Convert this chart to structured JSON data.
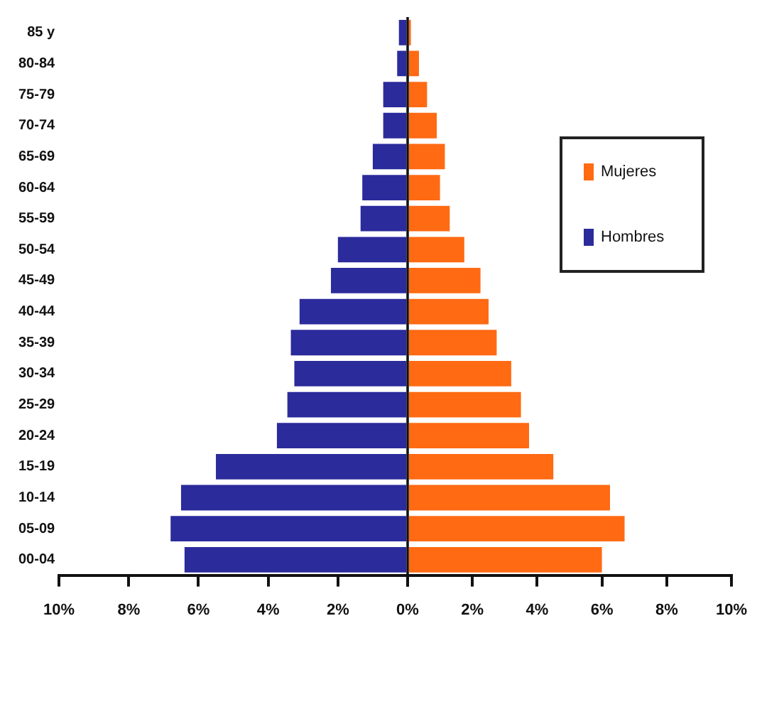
{
  "chart_data": [
    {
      "type": "bar",
      "orientation": "horizontal",
      "categories": [
        "85 y",
        "80-84",
        "75-79",
        "70-74",
        "65-69",
        "60-64",
        "55-59",
        "50-54",
        "45-49",
        "40-44",
        "35-39",
        "30-34",
        "25-29",
        "20-24",
        "15-19",
        "10-14",
        "05-09",
        "00-04"
      ],
      "series": [
        {
          "name": "Hombres",
          "color": "#2b2b9c",
          "values": [
            0.25,
            0.3,
            0.7,
            0.7,
            1.0,
            1.3,
            1.35,
            2.0,
            2.2,
            3.1,
            3.35,
            3.25,
            3.45,
            3.75,
            5.5,
            6.5,
            6.8,
            6.4
          ]
        }
      ],
      "xlim": [
        10,
        0
      ],
      "xticks": [
        {
          "value": 10,
          "label": "10%"
        },
        {
          "value": 8,
          "label": "8%"
        },
        {
          "value": 6,
          "label": "6%"
        },
        {
          "value": 4,
          "label": "4%"
        },
        {
          "value": 2,
          "label": "2%"
        },
        {
          "value": 0,
          "label": "0%"
        }
      ],
      "grid": false,
      "legend": "right"
    },
    {
      "type": "bar",
      "orientation": "horizontal",
      "categories": [
        null,
        null,
        null,
        null,
        null,
        null,
        null,
        null,
        null,
        null,
        null,
        null,
        null,
        null,
        null,
        null,
        null,
        null
      ],
      "series": [
        {
          "name": "Mujeres",
          "color": "#ff6a13",
          "values": [
            0.1,
            0.35,
            0.6,
            0.9,
            1.15,
            1.0,
            1.3,
            1.75,
            2.25,
            2.5,
            2.75,
            3.2,
            3.5,
            3.75,
            4.5,
            6.25,
            6.7,
            6.0
          ]
        }
      ],
      "xlim": [
        0,
        10
      ],
      "xticks": [
        {
          "value": 0,
          "label": null
        },
        {
          "value": 2,
          "label": "2%"
        },
        {
          "value": 4,
          "label": "4%"
        },
        {
          "value": 6,
          "label": "6%"
        },
        {
          "value": 8,
          "label": "8%"
        },
        {
          "value": 10,
          "label": "10%"
        }
      ],
      "tick_labels": "x",
      "grid": false,
      "legend": "top right"
    }
  ]
}
